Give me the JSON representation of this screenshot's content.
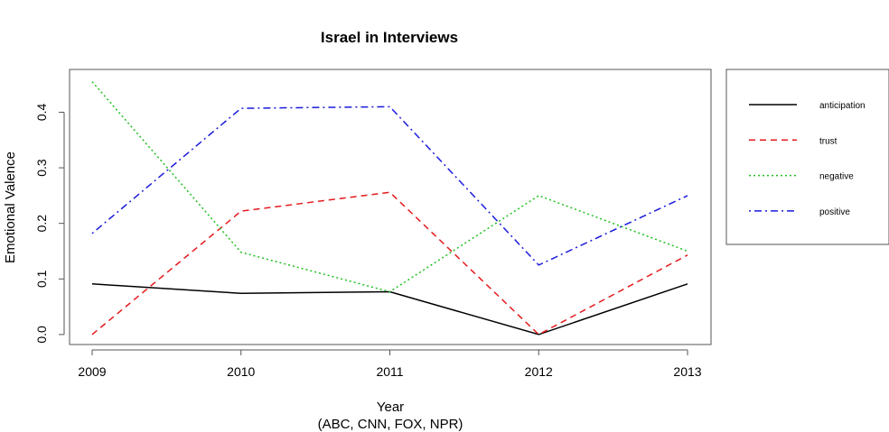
{
  "chart_data": {
    "type": "line",
    "title": "Israel in Interviews",
    "xlabel": "Year",
    "xlabel_sub": "(ABC, CNN, FOX, NPR)",
    "ylabel": "Emotional Valence",
    "x": [
      2009,
      2010,
      2011,
      2012,
      2013
    ],
    "xticks": [
      "2009",
      "2010",
      "2011",
      "2012",
      "2013"
    ],
    "yticks": [
      "0.0",
      "0.1",
      "0.2",
      "0.3",
      "0.4"
    ],
    "ylim": [
      -0.018,
      0.477
    ],
    "legend_position": "right",
    "grid": false,
    "series": [
      {
        "name": "anticipation",
        "color": "#000000",
        "dash": "solid",
        "values": [
          0.091,
          0.074,
          0.077,
          0.0,
          0.091
        ]
      },
      {
        "name": "trust",
        "color": "#e41a1c",
        "dash": "dashed",
        "values": [
          0.0,
          0.222,
          0.256,
          0.0,
          0.143
        ]
      },
      {
        "name": "negative",
        "color": "#1fbf1f",
        "dash": "dotted",
        "values": [
          0.455,
          0.148,
          0.077,
          0.25,
          0.15
        ]
      },
      {
        "name": "positive",
        "color": "#1a1adb",
        "dash": "dotdash",
        "values": [
          0.182,
          0.407,
          0.41,
          0.125,
          0.25
        ]
      }
    ]
  }
}
